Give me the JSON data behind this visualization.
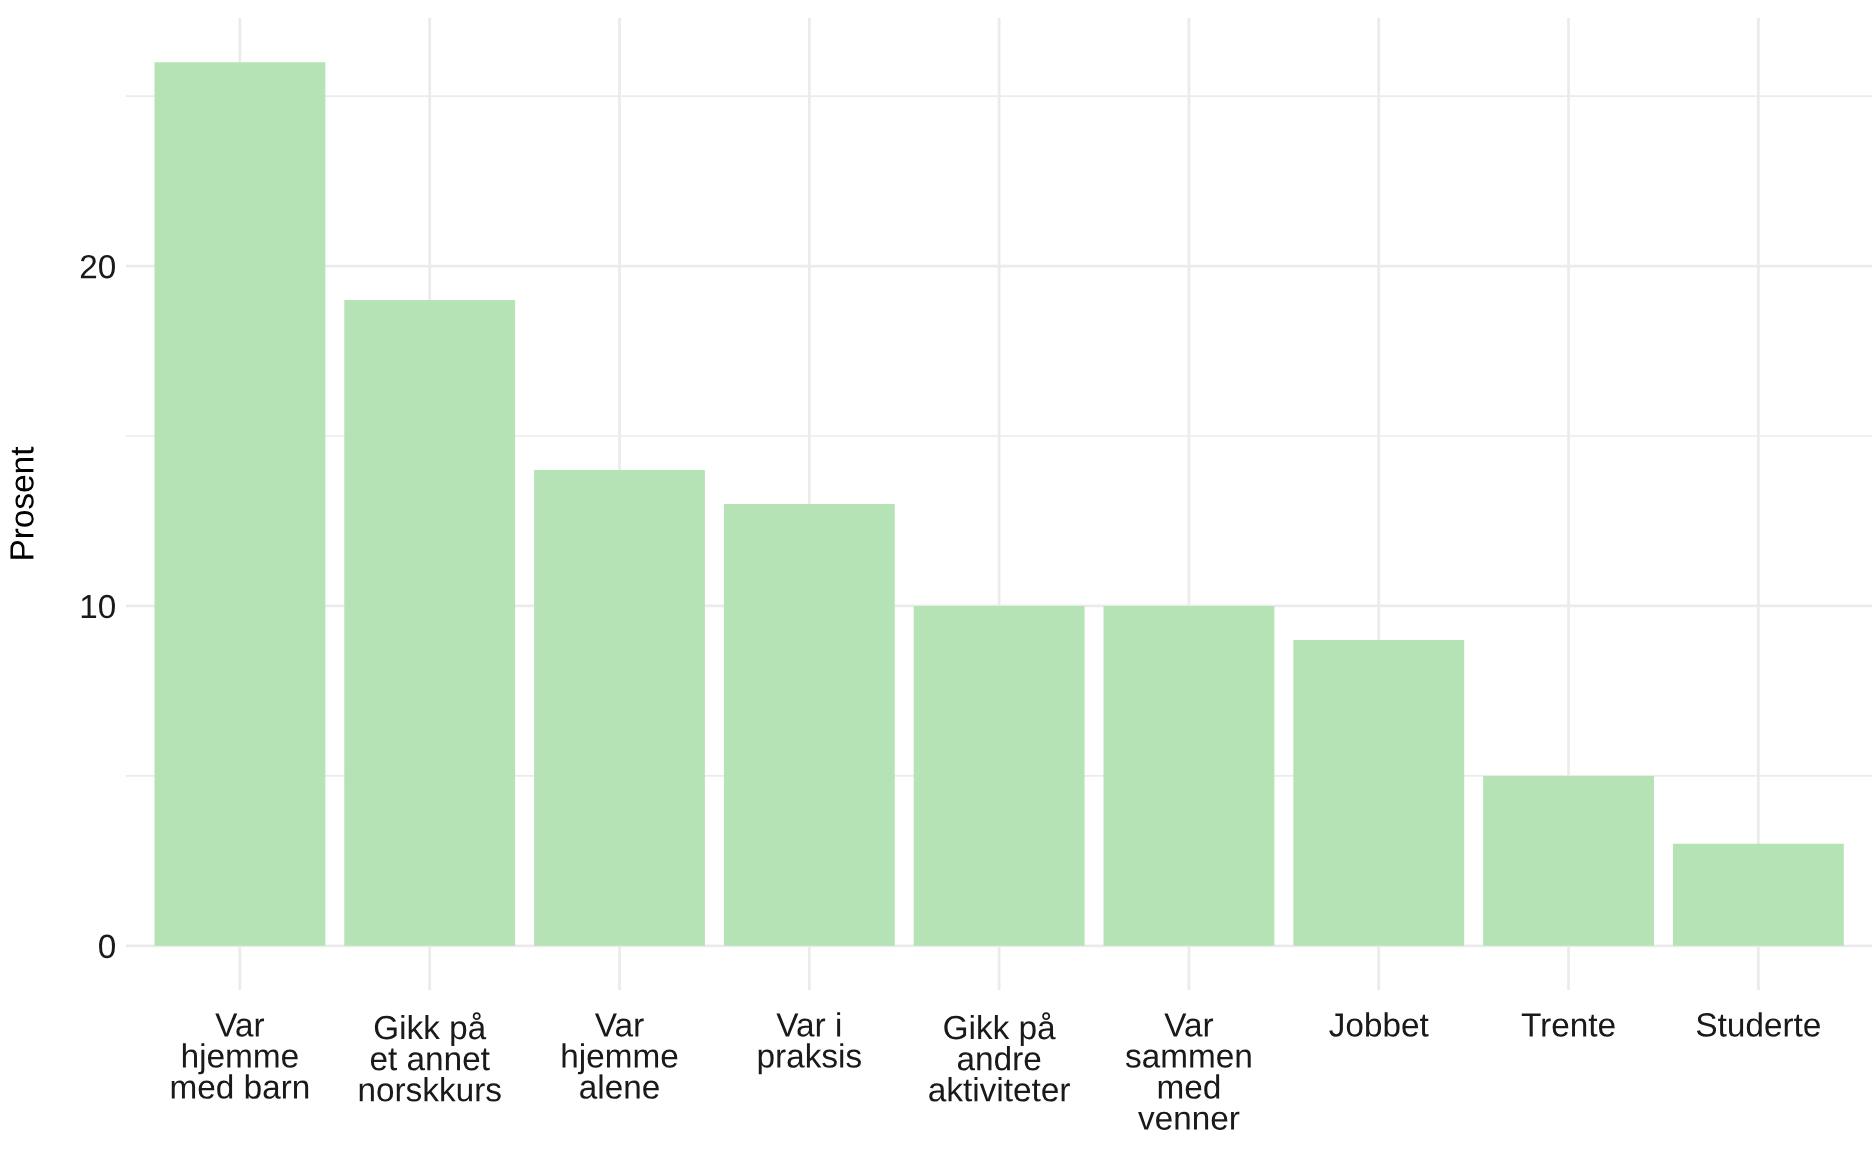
{
  "chart_data": {
    "type": "bar",
    "ylabel": "Prosent",
    "categories": [
      "Var\nhjemme\nmed barn",
      "Gikk på\net annet\nnorskkurs",
      "Var\nhjemme\nalene",
      "Var i\npraksis",
      "Gikk på\nandre\naktiviteter",
      "Var\nsammen\nmed\nvenner",
      "Jobbet",
      "Trente",
      "Studerte"
    ],
    "values": [
      26,
      19,
      14,
      13,
      10,
      10,
      9,
      5,
      3
    ],
    "color": "#b5e3b5",
    "ylim": [
      -1.3,
      27.3
    ],
    "yticks": [
      0,
      10,
      20
    ],
    "grid": true
  }
}
